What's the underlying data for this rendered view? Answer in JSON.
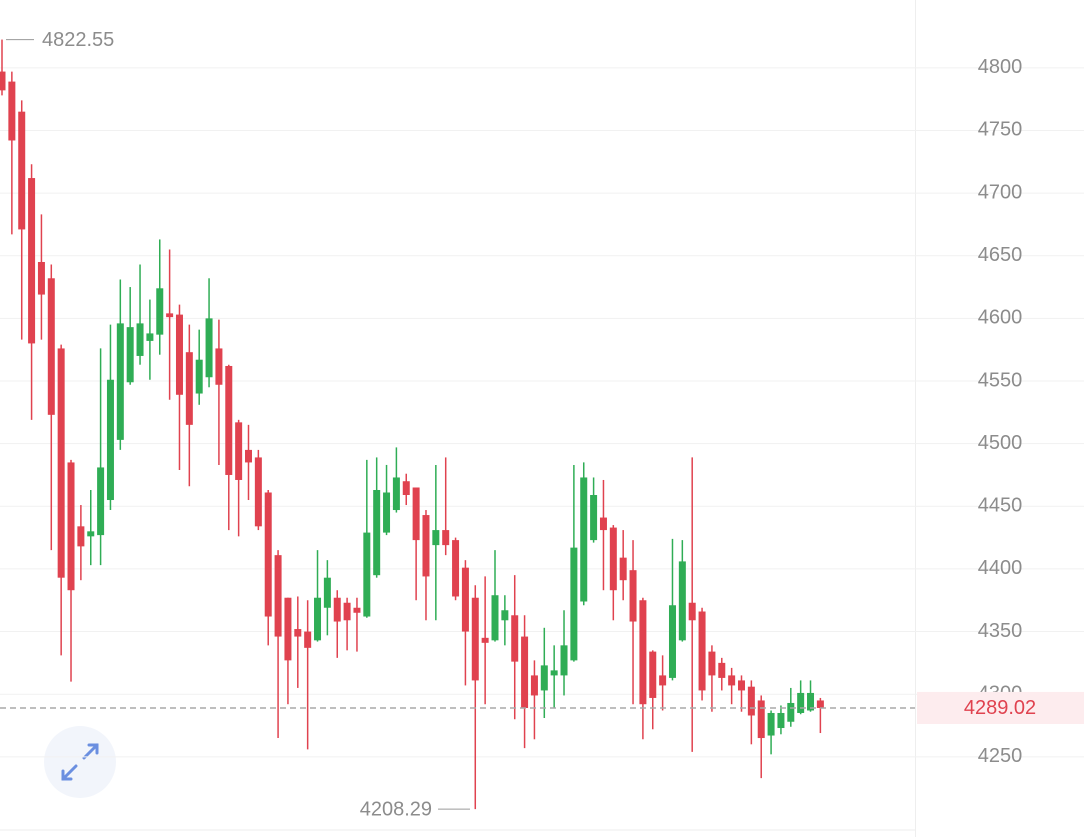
{
  "chart_data": {
    "type": "candlestick",
    "up_color": "#2fad55",
    "down_color": "#e0424f",
    "open": [
      4797,
      4789,
      4765,
      4712,
      4645,
      4632,
      4576,
      4485,
      4434,
      4426,
      4427,
      4455,
      4503,
      4549,
      4570,
      4582,
      4587,
      4604,
      4603,
      4573,
      4540,
      4553,
      4576,
      4562,
      4517,
      4495,
      4489,
      4461,
      4411,
      4377,
      4352,
      4350,
      4343,
      4369,
      4377,
      4373,
      4369,
      4362,
      4395,
      4429,
      4447,
      4470,
      4465,
      4443,
      4419,
      4431,
      4423,
      4401,
      4377,
      4345,
      4343,
      4359,
      4363,
      4346,
      4315,
      4303,
      4315,
      4315,
      4327,
      4374,
      4423,
      4441,
      4433,
      4409,
      4399,
      4375,
      4334,
      4315,
      4313,
      4343,
      4373,
      4366,
      4334,
      4325,
      4315,
      4311,
      4306,
      4295,
      4267,
      4273,
      4278,
      4285,
      4287,
      4295
    ],
    "high": [
      4822.55,
      4797,
      4774,
      4723,
      4683,
      4643,
      4579,
      4487,
      4451,
      4463,
      4576,
      4595,
      4631,
      4625,
      4643,
      4615,
      4663,
      4655,
      4611,
      4595,
      4591,
      4632,
      4599,
      4563,
      4519,
      4515,
      4495,
      4463,
      4415,
      4377,
      4378,
      4375,
      4415,
      4407,
      4383,
      4377,
      4377,
      4487,
      4489,
      4483,
      4497,
      4476,
      4465,
      4447,
      4483,
      4489,
      4425,
      4407,
      4387,
      4394,
      4415,
      4379,
      4395,
      4363,
      4327,
      4353,
      4339,
      4367,
      4483,
      4485,
      4473,
      4471,
      4435,
      4431,
      4423,
      4377,
      4335,
      4331,
      4424,
      4423,
      4489,
      4369,
      4339,
      4329,
      4321,
      4315,
      4311,
      4299,
      4287,
      4291,
      4305,
      4311,
      4311,
      4297
    ],
    "low": [
      4778,
      4667,
      4583,
      4519,
      4583,
      4415,
      4331,
      4310,
      4391,
      4403,
      4403,
      4447,
      4495,
      4547,
      4563,
      4551,
      4571,
      4535,
      4479,
      4466,
      4531,
      4545,
      4483,
      4431,
      4426,
      4455,
      4431,
      4339,
      4265,
      4292,
      4305,
      4256,
      4342,
      4347,
      4329,
      4335,
      4334,
      4361,
      4393,
      4427,
      4445,
      4451,
      4375,
      4359,
      4359,
      4411,
      4375,
      4307,
      4208.29,
      4292,
      4342,
      4339,
      4280,
      4257,
      4264,
      4281,
      4289,
      4299,
      4326,
      4371,
      4421,
      4383,
      4359,
      4375,
      4292,
      4264,
      4272,
      4287,
      4311,
      4342,
      4254,
      4295,
      4286,
      4303,
      4292,
      4286,
      4260,
      4233,
      4252,
      4268,
      4274,
      4284,
      4286,
      4269
    ],
    "close": [
      4782,
      4742,
      4671,
      4580,
      4619,
      4523,
      4393,
      4383,
      4418,
      4430,
      4481,
      4551,
      4596,
      4593,
      4596,
      4588,
      4624,
      4601,
      4539,
      4515,
      4567,
      4600,
      4547,
      4475,
      4471,
      4485,
      4434,
      4362,
      4346,
      4327,
      4346,
      4337,
      4377,
      4393,
      4358,
      4359,
      4365,
      4429,
      4463,
      4461,
      4473,
      4459,
      4423,
      4394,
      4431,
      4419,
      4378,
      4350,
      4311,
      4341,
      4379,
      4367,
      4326,
      4289,
      4299,
      4323,
      4319,
      4339,
      4417,
      4473,
      4459,
      4431,
      4383,
      4391,
      4358,
      4292,
      4297,
      4307,
      4371,
      4406,
      4359,
      4303,
      4315,
      4313,
      4307,
      4303,
      4283,
      4265,
      4285,
      4285,
      4293,
      4301,
      4301,
      4289.02
    ],
    "ylim": [
      4190,
      4823
    ],
    "yticks": [
      4250,
      4300,
      4350,
      4400,
      4450,
      4500,
      4550,
      4600,
      4650,
      4700,
      4750,
      4800
    ],
    "grid": true,
    "high_marker": 4822.55,
    "low_marker": 4208.29,
    "last_price": 4289.02
  }
}
